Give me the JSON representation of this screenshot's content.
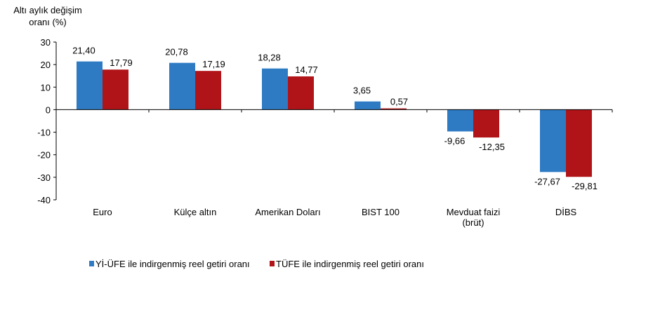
{
  "chart_data": {
    "type": "bar",
    "ylabel_lines": [
      "Altı aylık değişim",
      "oranı (%)"
    ],
    "ylim": [
      -40,
      30
    ],
    "yticks": [
      30,
      20,
      10,
      0,
      -10,
      -20,
      -30,
      -40
    ],
    "grid": false,
    "legend_position": "bottom",
    "categories": [
      [
        "Euro"
      ],
      [
        "Külçe altın"
      ],
      [
        "Amerikan Doları"
      ],
      [
        "BIST 100"
      ],
      [
        "Mevduat faizi",
        "(brüt)"
      ],
      [
        "DİBS"
      ]
    ],
    "series": [
      {
        "name": "Yİ-ÜFE ile indirgenmiş reel getiri oranı",
        "color": "#2E7BC4",
        "values": [
          21.4,
          20.78,
          18.28,
          3.65,
          -9.66,
          -27.67
        ],
        "labels": [
          "21,40",
          "20,78",
          "18,28",
          "3,65",
          "-9,66",
          "-27,67"
        ]
      },
      {
        "name": "TÜFE ile indirgenmiş reel getiri oranı",
        "color": "#B01418",
        "values": [
          17.79,
          17.19,
          14.77,
          0.57,
          -12.35,
          -29.81
        ],
        "labels": [
          "17,79",
          "17,19",
          "14,77",
          "0,57",
          "-12,35",
          "-29,81"
        ]
      }
    ]
  }
}
